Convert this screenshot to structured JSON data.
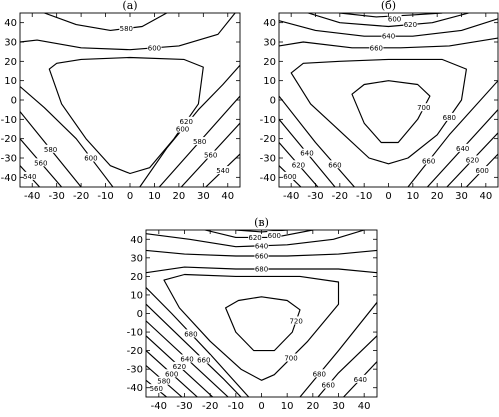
{
  "chart_data": [
    {
      "type": "contour",
      "title": "(а)",
      "x_ticks": [
        -40,
        -30,
        -20,
        -10,
        0,
        10,
        20,
        30,
        40
      ],
      "y_ticks": [
        -40,
        -30,
        -20,
        -10,
        0,
        10,
        20,
        30,
        40
      ],
      "xlim": [
        -45,
        45
      ],
      "ylim": [
        -45,
        45
      ],
      "levels": [
        {
          "value": 540,
          "label": "540",
          "lines": [
            [
              [
                -45,
                -34
              ],
              [
                -37,
                -45
              ]
            ],
            [
              [
                45,
                -28
              ],
              [
                31,
                -45
              ]
            ]
          ]
        },
        {
          "value": 560,
          "label": "560",
          "lines": [
            [
              [
                -45,
                -20
              ],
              [
                -28,
                -45
              ]
            ],
            [
              [
                45,
                -12
              ],
              [
                21,
                -45
              ]
            ]
          ]
        },
        {
          "value": 580,
          "label": "580",
          "lines": [
            [
              [
                -45,
                -6
              ],
              [
                -20,
                -45
              ]
            ],
            [
              [
                -35,
                45
              ],
              [
                -22,
                39
              ],
              [
                -8,
                36
              ],
              [
                5,
                38
              ],
              [
                15,
                45
              ]
            ],
            [
              [
                45,
                2
              ],
              [
                12,
                -45
              ]
            ]
          ]
        },
        {
          "value": 600,
          "label": "600",
          "lines": [
            [
              [
                -45,
                30
              ],
              [
                -38,
                31
              ],
              [
                -20,
                27
              ],
              [
                0,
                26
              ],
              [
                20,
                28
              ],
              [
                36,
                34
              ],
              [
                43,
                45
              ]
            ],
            [
              [
                -45,
                7
              ],
              [
                -35,
                -4
              ],
              [
                -22,
                -20
              ],
              [
                -10,
                -40
              ],
              [
                -7,
                -45
              ]
            ],
            [
              [
                45,
                18
              ],
              [
                38,
                8
              ],
              [
                28,
                -5
              ],
              [
                15,
                -25
              ],
              [
                4,
                -45
              ]
            ]
          ]
        },
        {
          "value": 620,
          "label": "620",
          "lines": [
            [
              [
                -33,
                16
              ],
              [
                -30,
                19
              ],
              [
                -20,
                21
              ],
              [
                0,
                22
              ],
              [
                22,
                21
              ],
              [
                30,
                17
              ],
              [
                28,
                -2
              ],
              [
                18,
                -20
              ],
              [
                8,
                -35
              ],
              [
                0,
                -38
              ],
              [
                -8,
                -34
              ],
              [
                -18,
                -20
              ],
              [
                -28,
                -2
              ],
              [
                -33,
                16
              ]
            ]
          ]
        }
      ]
    },
    {
      "type": "contour",
      "title": "(б)",
      "x_ticks": [
        -40,
        -30,
        -20,
        -10,
        0,
        10,
        20,
        30,
        40
      ],
      "y_ticks": [
        -40,
        -30,
        -20,
        -10,
        0,
        10,
        20,
        30,
        40
      ],
      "xlim": [
        -45,
        45
      ],
      "ylim": [
        -45,
        45
      ],
      "levels": [
        {
          "value": 600,
          "label": "600",
          "lines": [
            [
              [
                -45,
                -34
              ],
              [
                -36,
                -45
              ]
            ],
            [
              [
                -20,
                45
              ],
              [
                -5,
                43
              ],
              [
                10,
                44
              ],
              [
                22,
                45
              ]
            ],
            [
              [
                45,
                -28
              ],
              [
                32,
                -45
              ]
            ]
          ]
        },
        {
          "value": 620,
          "label": "620",
          "lines": [
            [
              [
                -45,
                -22
              ],
              [
                -29,
                -45
              ]
            ],
            [
              [
                -33,
                45
              ],
              [
                -20,
                40
              ],
              [
                0,
                38
              ],
              [
                18,
                40
              ],
              [
                33,
                45
              ]
            ],
            [
              [
                45,
                -17
              ],
              [
                24,
                -45
              ]
            ]
          ]
        },
        {
          "value": 640,
          "label": "640",
          "lines": [
            [
              [
                -45,
                -10
              ],
              [
                -22,
                -45
              ]
            ],
            [
              [
                -45,
                41
              ],
              [
                -30,
                36
              ],
              [
                -10,
                33
              ],
              [
                10,
                33
              ],
              [
                30,
                36
              ],
              [
                45,
                42
              ]
            ],
            [
              [
                45,
                -5
              ],
              [
                16,
                -45
              ]
            ]
          ]
        },
        {
          "value": 660,
          "label": "660",
          "lines": [
            [
              [
                -45,
                2
              ],
              [
                -30,
                -22
              ],
              [
                -14,
                -45
              ]
            ],
            [
              [
                -45,
                28
              ],
              [
                -35,
                30
              ],
              [
                -15,
                27
              ],
              [
                5,
                27
              ],
              [
                25,
                28
              ],
              [
                45,
                32
              ]
            ],
            [
              [
                45,
                10
              ],
              [
                25,
                -18
              ],
              [
                8,
                -45
              ]
            ]
          ]
        },
        {
          "value": 680,
          "label": "680",
          "lines": [
            [
              [
                -40,
                14
              ],
              [
                -35,
                19
              ],
              [
                -20,
                20
              ],
              [
                0,
                21
              ],
              [
                22,
                21
              ],
              [
                32,
                16
              ],
              [
                30,
                0
              ],
              [
                20,
                -18
              ],
              [
                8,
                -30
              ],
              [
                0,
                -33
              ],
              [
                -8,
                -30
              ],
              [
                -20,
                -16
              ],
              [
                -32,
                -2
              ],
              [
                -40,
                14
              ]
            ]
          ]
        },
        {
          "value": 700,
          "label": "700",
          "lines": [
            [
              [
                -15,
                3
              ],
              [
                -10,
                8
              ],
              [
                0,
                10
              ],
              [
                12,
                8
              ],
              [
                17,
                2
              ],
              [
                12,
                -10
              ],
              [
                4,
                -22
              ],
              [
                -3,
                -22
              ],
              [
                -10,
                -12
              ],
              [
                -15,
                3
              ]
            ]
          ]
        }
      ]
    },
    {
      "type": "contour",
      "title": "(в)",
      "x_ticks": [
        -40,
        -30,
        -20,
        -10,
        0,
        10,
        20,
        30,
        40
      ],
      "y_ticks": [
        -40,
        -30,
        -20,
        -10,
        0,
        10,
        20,
        30,
        40
      ],
      "xlim": [
        -45,
        45
      ],
      "ylim": [
        -45,
        45
      ],
      "levels": [
        {
          "value": 560,
          "label": "560",
          "lines": [
            [
              [
                -45,
                -36
              ],
              [
                -37,
                -45
              ]
            ]
          ]
        },
        {
          "value": 580,
          "label": "580",
          "lines": [
            [
              [
                -45,
                -28
              ],
              [
                -31,
                -45
              ]
            ]
          ]
        },
        {
          "value": 600,
          "label": "600",
          "lines": [
            [
              [
                -45,
                -20
              ],
              [
                -25,
                -45
              ]
            ],
            [
              [
                -10,
                45
              ],
              [
                0,
                44
              ],
              [
                10,
                45
              ]
            ]
          ]
        },
        {
          "value": 620,
          "label": "620",
          "lines": [
            [
              [
                -45,
                -12
              ],
              [
                -19,
                -45
              ]
            ],
            [
              [
                -22,
                45
              ],
              [
                -10,
                41
              ],
              [
                5,
                41
              ],
              [
                20,
                45
              ]
            ]
          ]
        },
        {
          "value": 640,
          "label": "640",
          "lines": [
            [
              [
                -45,
                -4
              ],
              [
                -13,
                -45
              ]
            ],
            [
              [
                -45,
                43
              ],
              [
                -28,
                40
              ],
              [
                -10,
                36
              ],
              [
                10,
                37
              ],
              [
                28,
                40
              ],
              [
                40,
                45
              ]
            ],
            [
              [
                45,
                -26
              ],
              [
                32,
                -45
              ]
            ]
          ]
        },
        {
          "value": 660,
          "label": "660",
          "lines": [
            [
              [
                -45,
                34
              ],
              [
                -30,
                32
              ],
              [
                -10,
                31
              ],
              [
                10,
                31
              ],
              [
                30,
                32
              ],
              [
                45,
                34
              ]
            ],
            [
              [
                -45,
                5
              ],
              [
                -30,
                -15
              ],
              [
                -15,
                -35
              ],
              [
                -8,
                -45
              ]
            ],
            [
              [
                45,
                -12
              ],
              [
                30,
                -32
              ],
              [
                22,
                -45
              ]
            ]
          ]
        },
        {
          "value": 680,
          "label": "680",
          "lines": [
            [
              [
                -45,
                22
              ],
              [
                -30,
                25
              ],
              [
                -10,
                24
              ],
              [
                10,
                24
              ],
              [
                30,
                24
              ],
              [
                45,
                22
              ]
            ],
            [
              [
                45,
                6
              ],
              [
                30,
                -20
              ],
              [
                15,
                -45
              ]
            ],
            [
              [
                -45,
                14
              ],
              [
                -35,
                0
              ],
              [
                -20,
                -22
              ],
              [
                -5,
                -45
              ]
            ]
          ]
        },
        {
          "value": 700,
          "label": "700",
          "lines": [
            [
              [
                -38,
                18
              ],
              [
                -30,
                21
              ],
              [
                -10,
                20
              ],
              [
                15,
                20
              ],
              [
                30,
                17
              ],
              [
                30,
                5
              ],
              [
                18,
                -15
              ],
              [
                5,
                -33
              ],
              [
                0,
                -36
              ],
              [
                -8,
                -30
              ],
              [
                -20,
                -15
              ],
              [
                -32,
                3
              ],
              [
                -38,
                18
              ]
            ]
          ]
        },
        {
          "value": 720,
          "label": "720",
          "lines": [
            [
              [
                -14,
                3
              ],
              [
                -9,
                7
              ],
              [
                0,
                9
              ],
              [
                10,
                7
              ],
              [
                15,
                2
              ],
              [
                12,
                -10
              ],
              [
                5,
                -20
              ],
              [
                -3,
                -20
              ],
              [
                -10,
                -10
              ],
              [
                -14,
                3
              ]
            ]
          ]
        }
      ]
    }
  ]
}
